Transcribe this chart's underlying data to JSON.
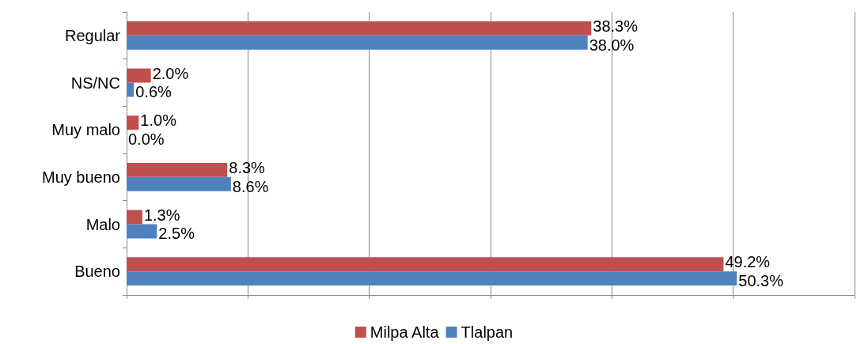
{
  "chart_data": {
    "type": "bar",
    "orientation": "horizontal",
    "categories": [
      "Regular",
      "NS/NC",
      "Muy malo",
      "Muy bueno",
      "Malo",
      "Bueno"
    ],
    "series": [
      {
        "name": "Milpa Alta",
        "color": "#c0504d",
        "values": [
          38.3,
          2.0,
          1.0,
          8.3,
          1.3,
          49.2
        ],
        "value_labels": [
          "38.3%",
          "2.0%",
          "1.0%",
          "8.3%",
          "1.3%",
          "49.2%"
        ]
      },
      {
        "name": "Tlalpan",
        "color": "#4f81bd",
        "values": [
          38.0,
          0.6,
          0.0,
          8.6,
          2.5,
          50.3
        ],
        "value_labels": [
          "38.0%",
          "0.6%",
          "0.0%",
          "8.6%",
          "2.5%",
          "50.3%"
        ]
      }
    ],
    "xlim": [
      0,
      60
    ],
    "xticks": [
      {
        "value": 0,
        "label": null
      },
      {
        "value": 10,
        "label": null
      },
      {
        "value": 20,
        "label": null
      },
      {
        "value": 30,
        "label": null
      },
      {
        "value": 40,
        "label": null
      },
      {
        "value": 50,
        "label": null
      },
      {
        "value": 60,
        "label": null
      }
    ],
    "tick_labels": "y",
    "grid": "x",
    "legend": "bottom"
  }
}
